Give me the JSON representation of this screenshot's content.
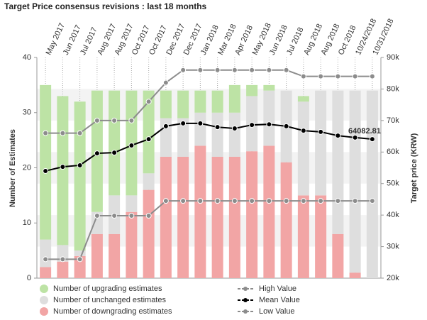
{
  "chart_data": {
    "type": "bar",
    "title": "Target Price consensus revisions : last 18 months",
    "ylabel": "Number of Estimates",
    "y2label": "Target price (KRW)",
    "categories": [
      "May 2017",
      "Jun 2017",
      "Jul 2017",
      "Aug 2017",
      "Aug 2017",
      "Oct 2017",
      "Oct 2017",
      "Dec 2017",
      "Dec 2017",
      "Jan 2018",
      "Mar 2018",
      "Apr 2018",
      "May 2018",
      "Jun 2018",
      "Jul 2018",
      "Aug 2018",
      "Aug 2018",
      "Oct 2018",
      "10/24/2018",
      "10/31/2018"
    ],
    "ylim": [
      0,
      40
    ],
    "yticks": [
      0,
      10,
      20,
      30,
      40
    ],
    "y2lim": [
      20000,
      90000
    ],
    "y2ticks": [
      {
        "value": 20000,
        "label": "20k"
      },
      {
        "value": 30000,
        "label": "30k"
      },
      {
        "value": 40000,
        "label": "40k"
      },
      {
        "value": 50000,
        "label": "50k"
      },
      {
        "value": 60000,
        "label": "60k"
      },
      {
        "value": 70000,
        "label": "70k"
      },
      {
        "value": 80000,
        "label": "80k"
      },
      {
        "value": 90000,
        "label": "90k"
      }
    ],
    "stacked": true,
    "series": [
      {
        "name": "Number of downgrading estimates",
        "type": "bar",
        "color": "#f2a5a5",
        "values": [
          2,
          3,
          4,
          8,
          8,
          12,
          16,
          22,
          22,
          24,
          22,
          22,
          23,
          24,
          21,
          15,
          15,
          8,
          1,
          0
        ]
      },
      {
        "name": "Number of unchanged estimates",
        "type": "bar",
        "color": "#dedede",
        "values": [
          5,
          3,
          1,
          4,
          7,
          3,
          3,
          7,
          7,
          6,
          8,
          8,
          10,
          10,
          13,
          17,
          19,
          26,
          33,
          34
        ]
      },
      {
        "name": "Number of upgrading estimates",
        "type": "bar",
        "color": "#bde3a5",
        "values": [
          28,
          27,
          27,
          22,
          19,
          19,
          15,
          5,
          5,
          4,
          4,
          5,
          2,
          1,
          0,
          1,
          0,
          0,
          0,
          0
        ]
      },
      {
        "name": "High Value",
        "type": "line",
        "axis": "y2",
        "color": "#8c8c8c",
        "values": [
          66000,
          66000,
          66000,
          70000,
          70000,
          70000,
          76000,
          82000,
          86000,
          86000,
          86000,
          86000,
          86000,
          86000,
          86000,
          84000,
          84000,
          84000,
          84000,
          84000
        ]
      },
      {
        "name": "Mean Value",
        "type": "line",
        "axis": "y2",
        "color": "#000000",
        "values": [
          54000,
          55300,
          55800,
          59600,
          59800,
          62100,
          64100,
          68200,
          69100,
          69100,
          67900,
          67500,
          68600,
          68800,
          68200,
          66800,
          66400,
          65200,
          64600,
          64082.81
        ],
        "value_labels": [
          null,
          null,
          null,
          null,
          null,
          null,
          null,
          null,
          null,
          null,
          null,
          null,
          null,
          null,
          null,
          null,
          null,
          null,
          null,
          "64082.81"
        ]
      },
      {
        "name": "Low Value",
        "type": "line",
        "axis": "y2",
        "color": "#8c8c8c",
        "values": [
          26000,
          26000,
          26000,
          39800,
          39800,
          39800,
          39800,
          44500,
          44500,
          44500,
          44500,
          44500,
          44500,
          44500,
          44500,
          44500,
          44500,
          44500,
          44500,
          44500
        ]
      }
    ]
  }
}
